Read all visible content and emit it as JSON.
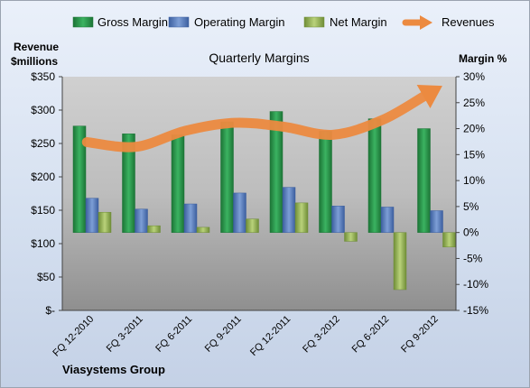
{
  "chart_data": {
    "type": "bar",
    "title": "Quarterly Margins",
    "company": "Viasystems Group",
    "y_left_label": [
      "Revenue",
      "$millions"
    ],
    "y_right_label": "Margin %",
    "left_ticks": [
      "$350",
      "$300",
      "$250",
      "$200",
      "$150",
      "$100",
      "$50",
      "$-"
    ],
    "right_ticks": [
      "30%",
      "25%",
      "20%",
      "15%",
      "10%",
      "5%",
      "0%",
      "-5%",
      "-10%",
      "-15%"
    ],
    "left_range": [
      0,
      350
    ],
    "right_range": [
      -15,
      30
    ],
    "categories": [
      "FQ 12-2010",
      "FQ 3-2011",
      "FQ 6-2011",
      "FQ 9-2011",
      "FQ 12-2011",
      "FQ 3-2012",
      "FQ 6-2012",
      "FQ 9-2012"
    ],
    "series": [
      {
        "name": "Gross Margin",
        "axis": "right",
        "kind": "bar",
        "color": "#2e9a4e",
        "values": [
          20.5,
          19.0,
          18.8,
          21.3,
          23.3,
          19.5,
          21.9,
          20.0
        ]
      },
      {
        "name": "Operating Margin",
        "axis": "right",
        "kind": "bar",
        "color": "#5a7fc2",
        "values": [
          6.6,
          4.5,
          5.5,
          7.6,
          8.7,
          5.1,
          4.9,
          4.2
        ]
      },
      {
        "name": "Net Margin",
        "axis": "right",
        "kind": "bar",
        "color": "#9bba59",
        "values": [
          3.9,
          1.3,
          1.0,
          2.6,
          5.7,
          -1.7,
          -11.0,
          -2.8
        ]
      },
      {
        "name": "Revenues",
        "axis": "left",
        "kind": "line",
        "color": "#ec8a40",
        "values": [
          252,
          245,
          269,
          281,
          275,
          263,
          285,
          327
        ]
      }
    ],
    "legend_position": "top",
    "grid": false
  }
}
